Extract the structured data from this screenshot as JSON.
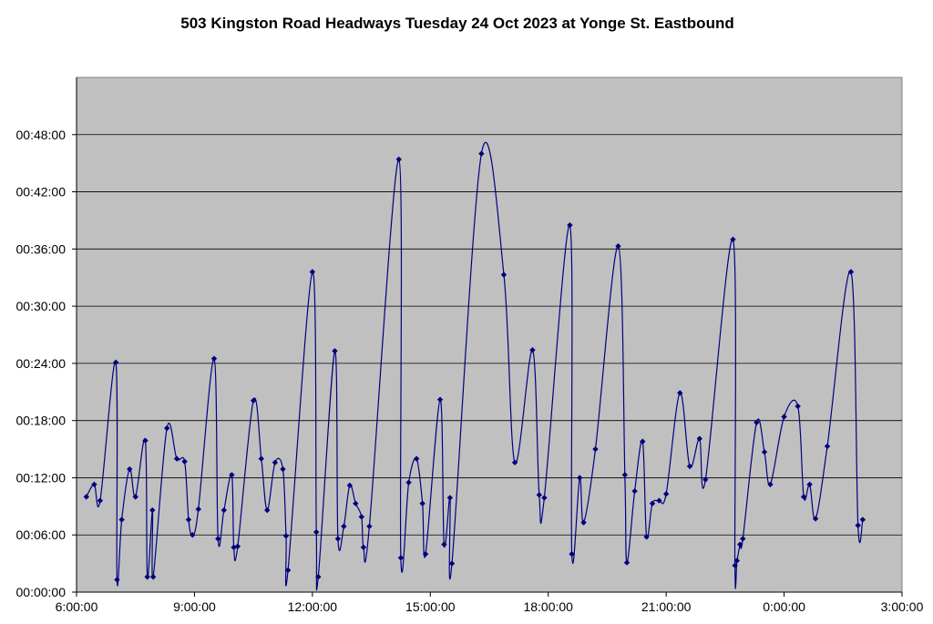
{
  "chart_data": {
    "type": "line",
    "title": "503 Kingston Road Headways Tuesday 24 Oct 2023 at Yonge St. Eastbound",
    "xlabel": "",
    "ylabel": "",
    "x_unit": "time of day (hours since 0:00 on 24 Oct; values above 24 are after midnight)",
    "y_unit": "minutes (headway)",
    "xlim": [
      6,
      27
    ],
    "ylim": [
      0,
      54
    ],
    "x_tick_labels": [
      "6:00:00",
      "9:00:00",
      "12:00:00",
      "15:00:00",
      "18:00:00",
      "21:00:00",
      "0:00:00",
      "3:00:00"
    ],
    "y_tick_labels": [
      "00:00:00",
      "00:06:00",
      "00:12:00",
      "00:18:00",
      "00:24:00",
      "00:30:00",
      "00:36:00",
      "00:42:00",
      "00:48:00"
    ],
    "grid": true,
    "background": "#c0c0c0",
    "line_color": "#000080",
    "series": [
      {
        "name": "",
        "points": [
          [
            6.25,
            10.0
          ],
          [
            6.45,
            11.3
          ],
          [
            6.6,
            9.6
          ],
          [
            7.0,
            24.1
          ],
          [
            7.03,
            1.3
          ],
          [
            7.15,
            7.6
          ],
          [
            7.35,
            12.9
          ],
          [
            7.5,
            10.0
          ],
          [
            7.75,
            15.9
          ],
          [
            7.8,
            1.6
          ],
          [
            7.93,
            8.6
          ],
          [
            7.95,
            1.6
          ],
          [
            8.3,
            17.2
          ],
          [
            8.55,
            14.0
          ],
          [
            8.75,
            13.7
          ],
          [
            8.85,
            7.6
          ],
          [
            8.95,
            6.0
          ],
          [
            9.1,
            8.7
          ],
          [
            9.5,
            24.5
          ],
          [
            9.6,
            5.6
          ],
          [
            9.75,
            8.6
          ],
          [
            9.95,
            12.3
          ],
          [
            10.0,
            4.7
          ],
          [
            10.1,
            4.8
          ],
          [
            10.5,
            20.1
          ],
          [
            10.7,
            14.0
          ],
          [
            10.85,
            8.6
          ],
          [
            11.05,
            13.6
          ],
          [
            11.25,
            12.9
          ],
          [
            11.33,
            5.9
          ],
          [
            11.38,
            2.3
          ],
          [
            12.0,
            33.6
          ],
          [
            12.1,
            6.3
          ],
          [
            12.15,
            1.6
          ],
          [
            12.57,
            25.3
          ],
          [
            12.65,
            5.6
          ],
          [
            12.8,
            6.9
          ],
          [
            12.95,
            11.2
          ],
          [
            13.1,
            9.3
          ],
          [
            13.25,
            7.9
          ],
          [
            13.3,
            4.7
          ],
          [
            13.45,
            6.9
          ],
          [
            14.2,
            45.4
          ],
          [
            14.25,
            3.6
          ],
          [
            14.45,
            11.5
          ],
          [
            14.65,
            14.0
          ],
          [
            14.8,
            9.3
          ],
          [
            14.88,
            4.0
          ],
          [
            15.25,
            20.2
          ],
          [
            15.35,
            5.0
          ],
          [
            15.5,
            9.9
          ],
          [
            15.55,
            3.0
          ],
          [
            16.3,
            46.0
          ],
          [
            16.87,
            33.3
          ],
          [
            17.15,
            13.6
          ],
          [
            17.6,
            25.4
          ],
          [
            17.77,
            10.2
          ],
          [
            17.9,
            9.9
          ],
          [
            18.55,
            38.5
          ],
          [
            18.6,
            4.0
          ],
          [
            18.8,
            12.0
          ],
          [
            18.9,
            7.3
          ],
          [
            19.2,
            15.0
          ],
          [
            19.78,
            36.3
          ],
          [
            19.95,
            12.3
          ],
          [
            20.0,
            3.1
          ],
          [
            20.2,
            10.6
          ],
          [
            20.4,
            15.8
          ],
          [
            20.5,
            5.8
          ],
          [
            20.65,
            9.3
          ],
          [
            20.82,
            9.6
          ],
          [
            21.0,
            10.3
          ],
          [
            21.35,
            20.9
          ],
          [
            21.6,
            13.2
          ],
          [
            21.85,
            16.1
          ],
          [
            22.0,
            11.8
          ],
          [
            22.7,
            37.0
          ],
          [
            22.75,
            2.8
          ],
          [
            22.8,
            3.3
          ],
          [
            22.88,
            5.0
          ],
          [
            22.95,
            5.6
          ],
          [
            23.3,
            17.8
          ],
          [
            23.5,
            14.7
          ],
          [
            23.65,
            11.3
          ],
          [
            24.0,
            18.4
          ],
          [
            24.35,
            19.5
          ],
          [
            24.5,
            10.0
          ],
          [
            24.65,
            11.3
          ],
          [
            24.8,
            7.7
          ],
          [
            25.1,
            15.3
          ],
          [
            25.7,
            33.6
          ],
          [
            25.88,
            7.0
          ],
          [
            26.0,
            7.6
          ]
        ]
      }
    ]
  }
}
